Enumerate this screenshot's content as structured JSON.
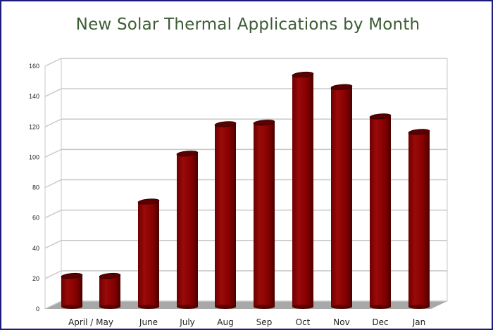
{
  "chart_data": {
    "type": "bar",
    "title": "New Solar Thermal Applications by Month",
    "categories": [
      "April",
      "May",
      "June",
      "July",
      "Aug",
      "Sep",
      "Oct",
      "Nov",
      "Dec",
      "Jan"
    ],
    "x_labels": [
      "April / May",
      "June",
      "July",
      "Aug",
      "Sep",
      "Oct",
      "Nov",
      "Dec",
      "Jan"
    ],
    "values": [
      20,
      20,
      68,
      99,
      118,
      119,
      150,
      142,
      123,
      113
    ],
    "xlabel": "",
    "ylabel": "",
    "ylim": [
      0,
      160
    ],
    "yticks": [
      "0",
      "20",
      "40",
      "60",
      "80",
      "100",
      "120",
      "140",
      "160"
    ],
    "grid": true,
    "legend": "none",
    "bar_color": "#8b0000",
    "title_color": "#3d5c35",
    "frame_color": "#1c1c7a"
  }
}
